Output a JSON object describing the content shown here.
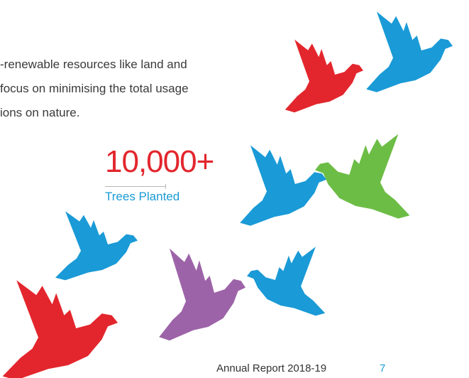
{
  "paragraph": {
    "lines": [
      "-renewable resources like land and",
      "focus on minimising the total usage",
      "ions on nature."
    ]
  },
  "stat": {
    "value": "10,000+",
    "label": "Trees Planted"
  },
  "footer": {
    "title": "Annual Report 2018-19",
    "page": "7"
  }
}
